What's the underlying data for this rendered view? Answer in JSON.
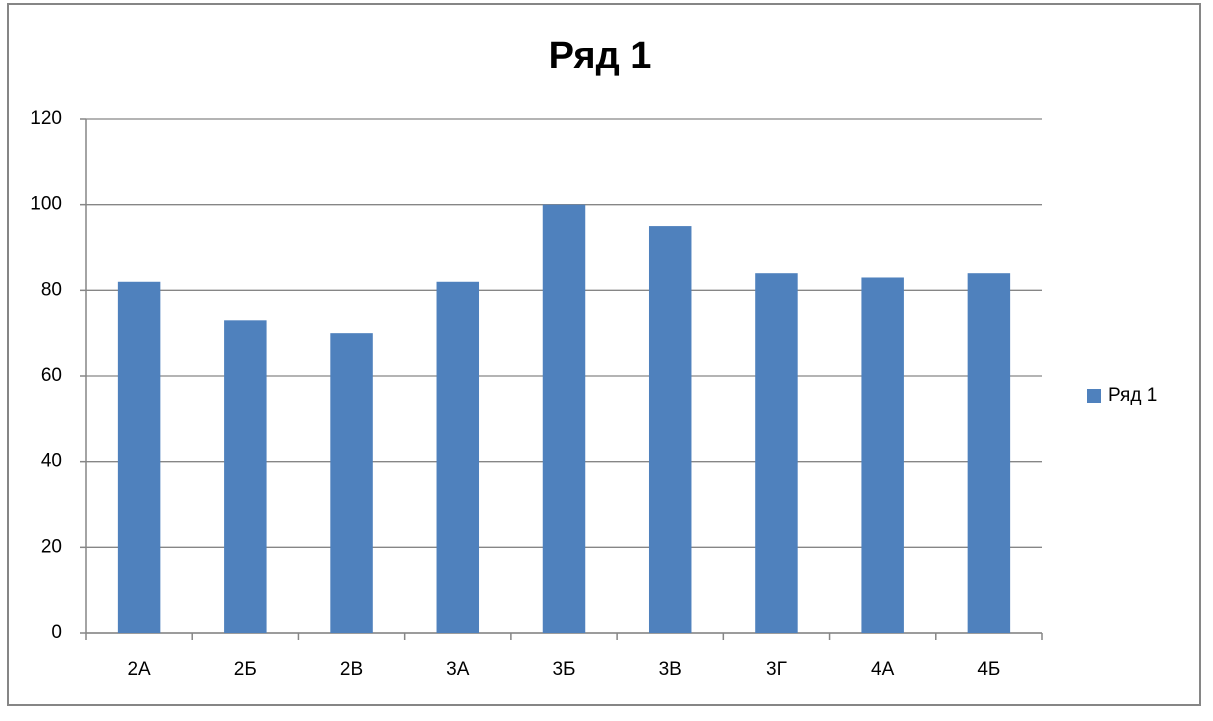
{
  "chart_data": {
    "type": "bar",
    "title": "Ряд 1",
    "categories": [
      "2А",
      "2Б",
      "2В",
      "3А",
      "3Б",
      "3В",
      "3Г",
      "4А",
      "4Б"
    ],
    "series": [
      {
        "name": "Ряд 1",
        "color": "#4f81bd",
        "values": [
          82,
          73,
          70,
          82,
          100,
          95,
          84,
          83,
          84
        ]
      }
    ],
    "ylim": [
      0,
      120
    ],
    "yticks": [
      0,
      20,
      40,
      60,
      80,
      100,
      120
    ],
    "grid": true,
    "legend": "right"
  }
}
